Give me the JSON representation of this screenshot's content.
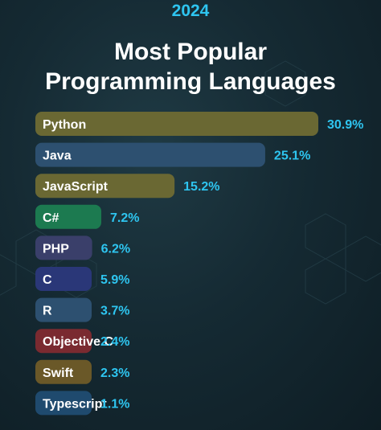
{
  "header": {
    "year": "2024",
    "title_line1": "Most Popular",
    "title_line2": "Programming Languages"
  },
  "colors": {
    "background": "#152a33",
    "accent": "#2ec5f0",
    "label_text": "#ffffff"
  },
  "chart_data": {
    "type": "bar",
    "orientation": "horizontal",
    "title": "Most Popular Programming Languages",
    "xlabel": "",
    "ylabel": "",
    "xlim": [
      0,
      30.9
    ],
    "grid": false,
    "categories": [
      "Python",
      "Java",
      "JavaScript",
      "C#",
      "PHP",
      "C",
      "R",
      "Objective C",
      "Swift",
      "Typescript"
    ],
    "values": [
      30.9,
      25.1,
      15.2,
      7.2,
      6.2,
      5.9,
      3.7,
      2.4,
      2.3,
      1.1
    ],
    "value_labels": [
      "30.9%",
      "25.1%",
      "15.2%",
      "7.2%",
      "6.2%",
      "5.9%",
      "3.7%",
      "2.4%",
      "2.3%",
      "1.1%"
    ],
    "bar_colors": [
      "#6a6833",
      "#2d5070",
      "#6a6833",
      "#1c7a50",
      "#3a3f6a",
      "#2a3778",
      "#2d5070",
      "#7a2a30",
      "#6a5828",
      "#1f4a6e"
    ]
  }
}
